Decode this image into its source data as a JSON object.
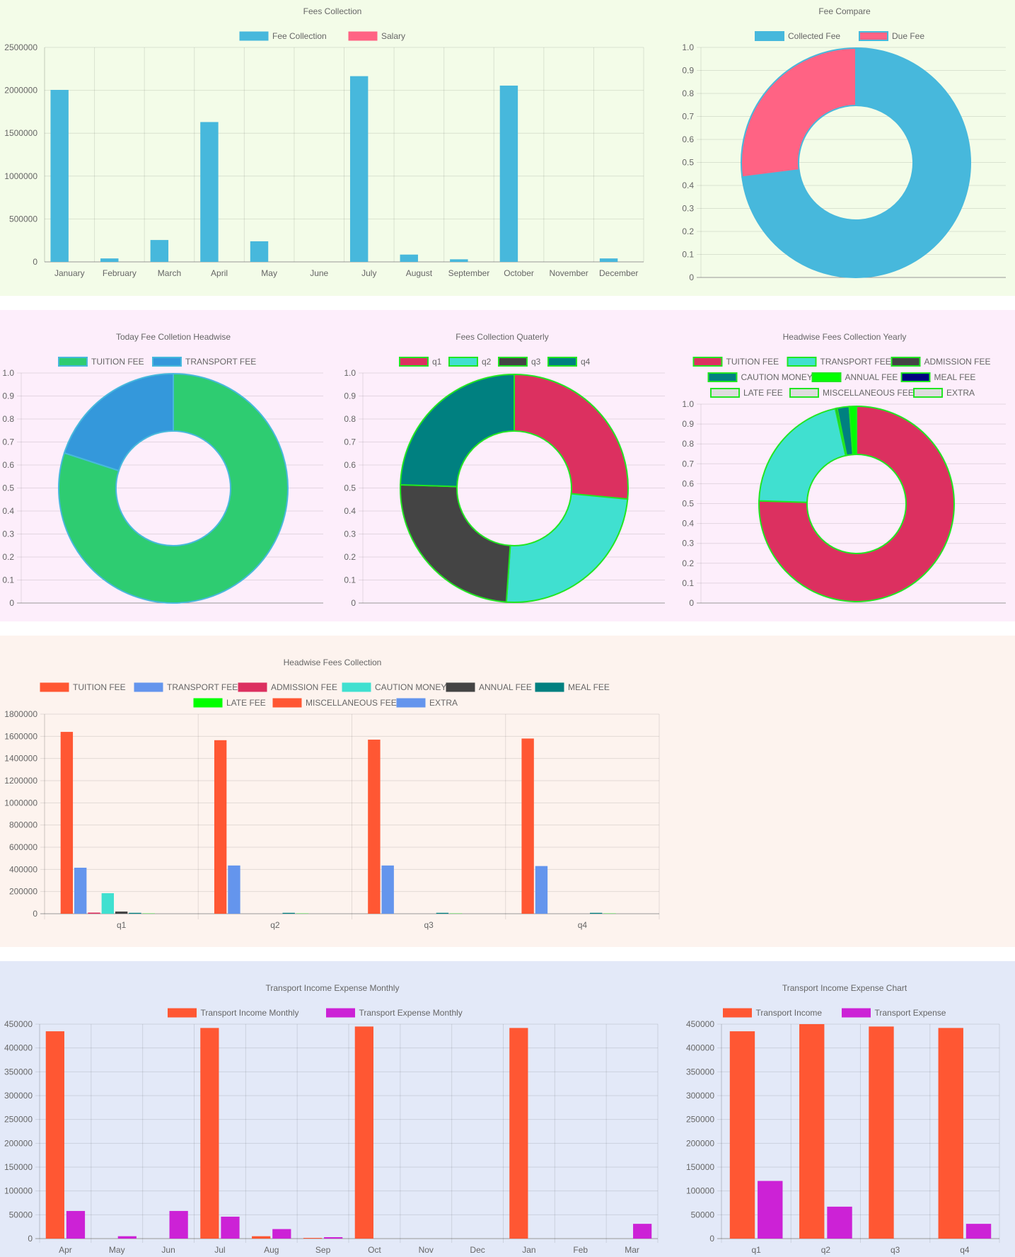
{
  "chart_data": [
    {
      "id": "fees_collection",
      "type": "bar",
      "title": "Fees Collection",
      "categories": [
        "January",
        "February",
        "March",
        "April",
        "May",
        "June",
        "July",
        "August",
        "September",
        "October",
        "November",
        "December"
      ],
      "series": [
        {
          "name": "Fee Collection",
          "color": "#47b8dc",
          "values": [
            2005000,
            40000,
            255000,
            1630000,
            240000,
            0,
            2165000,
            85000,
            30000,
            2055000,
            0,
            40000
          ]
        },
        {
          "name": "Salary",
          "color": "#ff6384",
          "values": [
            0,
            0,
            0,
            0,
            0,
            0,
            0,
            0,
            0,
            0,
            0,
            0
          ]
        }
      ],
      "ylim": [
        0,
        2500000
      ],
      "yticks": [
        "2500000",
        "2000000",
        "1500000",
        "1000000",
        "500000",
        "0"
      ],
      "legend_position": "top",
      "grid": true
    },
    {
      "id": "fee_compare",
      "type": "pie",
      "title": "Fee Compare",
      "labels": [
        "Collected Fee",
        "Due Fee"
      ],
      "values": [
        0.73,
        0.27
      ],
      "colors": [
        "#47b8dc",
        "#ff6384"
      ],
      "yticks": [
        "1.0",
        "0.9",
        "0.8",
        "0.7",
        "0.6",
        "0.5",
        "0.4",
        "0.3",
        "0.2",
        "0.1",
        "0"
      ],
      "legend_position": "top",
      "grid": true
    },
    {
      "id": "today_headwise",
      "type": "pie",
      "title": "Today Fee Colletion Headwise",
      "labels": [
        "TUITION FEE",
        "TRANSPORT FEE"
      ],
      "values": [
        0.8,
        0.2
      ],
      "colors": [
        "#2ecc71",
        "#3498db"
      ],
      "yticks": [
        "1.0",
        "0.9",
        "0.8",
        "0.7",
        "0.6",
        "0.5",
        "0.4",
        "0.3",
        "0.2",
        "0.1",
        "0"
      ],
      "legend_position": "top",
      "grid": true
    },
    {
      "id": "quarterly",
      "type": "pie",
      "title": "Fees Collection Quaterly",
      "labels": [
        "q1",
        "q2",
        "q3",
        "q4"
      ],
      "values": [
        0.265,
        0.246,
        0.244,
        0.245
      ],
      "colors": [
        "#dc3060",
        "#40e0d0",
        "#444444",
        "#008080"
      ],
      "yticks": [
        "1.0",
        "0.9",
        "0.8",
        "0.7",
        "0.6",
        "0.5",
        "0.4",
        "0.3",
        "0.2",
        "0.1",
        "0"
      ],
      "legend_position": "top",
      "grid": true
    },
    {
      "id": "headwise_yearly",
      "type": "pie",
      "title": "Headwise Fees Collection Yearly",
      "labels": [
        "TUITION FEE",
        "TRANSPORT FEE",
        "ADMISSION FEE",
        "CAUTION MONEY",
        "ANNUAL FEE",
        "MEAL FEE",
        "LATE FEE",
        "MISCELLANEOUS FEE",
        "EXTRA"
      ],
      "values": [
        0.755,
        0.21,
        0.003,
        0.02,
        0.012,
        0,
        0,
        0,
        0
      ],
      "colors": [
        "#dc3060",
        "#40e0d0",
        "#444444",
        "#008080",
        "#00ff00",
        "#000080",
        "#dddddd",
        "#dddddd",
        "#dddddd"
      ],
      "yticks": [
        "1.0",
        "0.9",
        "0.8",
        "0.7",
        "0.6",
        "0.5",
        "0.4",
        "0.3",
        "0.2",
        "0.1",
        "0"
      ],
      "legend_position": "top",
      "grid": true
    },
    {
      "id": "headwise_collection",
      "type": "bar",
      "title": "Headwise Fees Collection",
      "categories": [
        "q1",
        "q2",
        "q3",
        "q4"
      ],
      "series": [
        {
          "name": "TUITION FEE",
          "color": "#ff5733",
          "values": [
            1640000,
            1565000,
            1570000,
            1580000
          ]
        },
        {
          "name": "TRANSPORT FEE",
          "color": "#6495ed",
          "values": [
            415000,
            435000,
            435000,
            430000
          ]
        },
        {
          "name": "ADMISSION FEE",
          "color": "#dc3060",
          "values": [
            10000,
            0,
            0,
            0
          ]
        },
        {
          "name": "CAUTION MONEY",
          "color": "#40e0d0",
          "values": [
            185000,
            0,
            0,
            0
          ]
        },
        {
          "name": "ANNUAL FEE",
          "color": "#444444",
          "values": [
            20000,
            0,
            0,
            0
          ]
        },
        {
          "name": "MEAL FEE",
          "color": "#008080",
          "values": [
            8000,
            8000,
            8000,
            8000
          ]
        },
        {
          "name": "LATE FEE",
          "color": "#00ff00",
          "values": [
            2000,
            2000,
            2000,
            2000
          ]
        },
        {
          "name": "MISCELLANEOUS FEE",
          "color": "#ff5733",
          "values": [
            0,
            0,
            0,
            0
          ]
        },
        {
          "name": "EXTRA",
          "color": "#6495ed",
          "values": [
            0,
            0,
            0,
            0
          ]
        }
      ],
      "ylim": [
        0,
        1800000
      ],
      "yticks": [
        "1800000",
        "1600000",
        "1400000",
        "1200000",
        "1000000",
        "800000",
        "600000",
        "400000",
        "200000",
        "0"
      ],
      "legend_position": "top",
      "grid": true
    },
    {
      "id": "transport_monthly",
      "type": "bar",
      "title": "Transport Income Expense Monthly",
      "categories": [
        "Apr",
        "May",
        "Jun",
        "Jul",
        "Aug",
        "Sep",
        "Oct",
        "Nov",
        "Dec",
        "Jan",
        "Feb",
        "Mar"
      ],
      "series": [
        {
          "name": "Transport Income Monthly",
          "color": "#ff5733",
          "values": [
            435000,
            0,
            0,
            442000,
            5000,
            1500,
            445000,
            0,
            0,
            442000,
            0,
            0
          ]
        },
        {
          "name": "Transport Expense Monthly",
          "color": "#cc22d6",
          "values": [
            58000,
            5000,
            58000,
            46000,
            20000,
            3000,
            0,
            0,
            0,
            0,
            0,
            31000
          ]
        }
      ],
      "ylim": [
        0,
        450000
      ],
      "yticks": [
        "450000",
        "400000",
        "350000",
        "300000",
        "250000",
        "200000",
        "150000",
        "100000",
        "50000",
        "0"
      ],
      "legend_position": "top",
      "grid": true
    },
    {
      "id": "transport_chart",
      "type": "bar",
      "title": "Transport Income Expense Chart",
      "categories": [
        "q1",
        "q2",
        "q3",
        "q4"
      ],
      "series": [
        {
          "name": "Transport Income",
          "color": "#ff5733",
          "values": [
            435000,
            450000,
            445000,
            442000
          ]
        },
        {
          "name": "Transport Expense",
          "color": "#cc22d6",
          "values": [
            121000,
            67000,
            0,
            31000
          ]
        }
      ],
      "ylim": [
        0,
        450000
      ],
      "yticks": [
        "450000",
        "400000",
        "350000",
        "300000",
        "250000",
        "200000",
        "150000",
        "100000",
        "50000",
        "0"
      ],
      "legend_position": "top",
      "grid": true
    }
  ]
}
